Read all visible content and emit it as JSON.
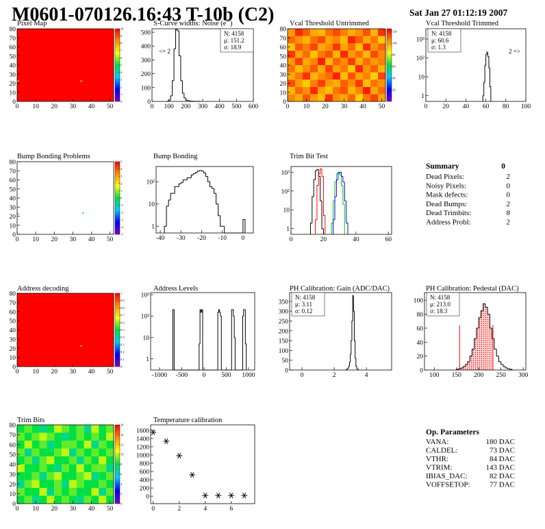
{
  "header": {
    "title": "M0601-070126.16:43 T-10b (C2)",
    "timestamp": "Sat Jan 27 01:12:19 2007"
  },
  "palette": [
    "#8000c0",
    "#0000ff",
    "#00c8ff",
    "#00e040",
    "#ffff00",
    "#ff8c00",
    "#ff0000"
  ],
  "chart_data": [
    {
      "type": "heatmap",
      "title": "Pixel Map",
      "xlim": [
        0,
        52
      ],
      "ylim": [
        0,
        80
      ],
      "xticks": [
        0,
        10,
        20,
        30,
        40,
        50
      ],
      "yticks": [
        0,
        10,
        20,
        30,
        40,
        50,
        60,
        70,
        80
      ],
      "zlim": [
        0,
        10
      ],
      "zticks": [
        0,
        1,
        2,
        3,
        4,
        5,
        6,
        7,
        8,
        9,
        10
      ],
      "xbins": [
        0,
        52
      ],
      "ybins": [
        0,
        80
      ],
      "z": [
        [
          10
        ]
      ],
      "pixels": [
        {
          "x": 34,
          "y": 22,
          "value": 6
        },
        {
          "x": 0,
          "y": 22,
          "value": 6
        }
      ]
    },
    {
      "type": "histogram",
      "title": "S-Curve widths: Noise (e⁻)",
      "color": "#000000",
      "xlim": [
        0,
        600
      ],
      "ylim": [
        0,
        525
      ],
      "xticks": [
        0,
        100,
        200,
        300,
        400,
        500,
        600
      ],
      "yticks": [
        0,
        100,
        200,
        300,
        400,
        500
      ],
      "bins": [
        90,
        100,
        110,
        120,
        130,
        140,
        150,
        160,
        170,
        180,
        190,
        200,
        210,
        220,
        230,
        240,
        250,
        260,
        270,
        280,
        290
      ],
      "values": [
        2,
        8,
        40,
        150,
        380,
        520,
        510,
        330,
        150,
        60,
        25,
        10,
        6,
        3,
        2,
        1,
        1,
        0,
        1,
        0
      ],
      "stats": [
        "N: 4158",
        "μ: 151.2",
        "σ: 18.9"
      ],
      "stats_corner": "upper right",
      "annotation": "<= 2",
      "annotation_side": "left"
    },
    {
      "type": "heatmap",
      "title": "Vcal Threshold Untrimmed",
      "xlim": [
        0,
        52
      ],
      "ylim": [
        0,
        80
      ],
      "xticks": [
        0,
        10,
        20,
        30,
        40,
        50
      ],
      "yticks": [
        0,
        10,
        20,
        30,
        40,
        50,
        60,
        70,
        80
      ],
      "zlim": [
        0,
        125
      ],
      "zticks": [
        20,
        40,
        60,
        80,
        100,
        120
      ],
      "xbins": [
        0,
        4,
        8,
        12,
        16,
        20,
        24,
        28,
        32,
        36,
        40,
        44,
        48,
        52
      ],
      "ybins": [
        0,
        8,
        16,
        24,
        32,
        40,
        48,
        56,
        64,
        72,
        80
      ],
      "z": [
        [
          105,
          98,
          112,
          101,
          95,
          118,
          104,
          99,
          110,
          92,
          107,
          115,
          100
        ],
        [
          96,
          110,
          103,
          119,
          100,
          94,
          108,
          113,
          97,
          105,
          121,
          99,
          109
        ],
        [
          114,
          101,
          93,
          106,
          116,
          102,
          98,
          111,
          104,
          117,
          95,
          108,
          103
        ],
        [
          99,
          107,
          118,
          97,
          104,
          109,
          120,
          95,
          113,
          100,
          106,
          92,
          115
        ],
        [
          108,
          95,
          104,
          112,
          98,
          115,
          101,
          107,
          93,
          119,
          103,
          111,
          97
        ],
        [
          102,
          116,
          99,
          105,
          121,
          96,
          110,
          104,
          116,
          98,
          109,
          101,
          106
        ],
        [
          117,
          100,
          109,
          94,
          107,
          113,
          97,
          119,
          102,
          108,
          96,
          114,
          104
        ],
        [
          94,
          112,
          106,
          115,
          99,
          104,
          117,
          100,
          109,
          95,
          118,
          103,
          110
        ],
        [
          110,
          103,
          97,
          108,
          114,
          100,
          105,
          96,
          120,
          111,
          99,
          107,
          93
        ],
        [
          101,
          119,
          111,
          99,
          96,
          108,
          114,
          106,
          98,
          104,
          113,
          97,
          118
        ]
      ]
    },
    {
      "type": "histogram",
      "title": "Vcal Threshold Trimmed",
      "color": "#000000",
      "logy": true,
      "xlim": [
        0,
        100
      ],
      "ylim": [
        0.5,
        3500
      ],
      "xticks": [
        0,
        20,
        40,
        60,
        80,
        100
      ],
      "yticks": [
        1,
        10,
        {
          "value": 100,
          "label": "10²"
        },
        {
          "value": 1000,
          "label": "10³"
        }
      ],
      "bins": [
        57,
        58,
        59,
        60,
        61,
        62,
        63,
        64,
        65
      ],
      "values": [
        1,
        5,
        40,
        150,
        200,
        120,
        30,
        3
      ],
      "stats": [
        "N: 4158",
        "μ: 60.6",
        "σ:  1.3"
      ],
      "stats_corner": "upper left",
      "annotation": "2 =>",
      "annotation_side": "right"
    },
    {
      "type": "heatmap",
      "title": "Bump Bonding Problems",
      "xlim": [
        0,
        52
      ],
      "ylim": [
        0,
        80
      ],
      "xticks": [
        0,
        10,
        20,
        30,
        40,
        50
      ],
      "yticks": [
        0,
        10,
        20,
        30,
        40,
        50,
        60,
        70,
        80
      ],
      "zlim": [
        -5,
        5
      ],
      "zticks": [
        -5,
        -4,
        -3,
        -2,
        -1,
        0,
        1,
        2,
        3,
        4,
        5
      ],
      "xbins": [
        0,
        52
      ],
      "ybins": [
        0,
        80
      ],
      "z": [
        [
          null
        ]
      ],
      "pixels": [
        {
          "x": 35,
          "y": 23,
          "value": 0
        },
        {
          "x": 0,
          "y": 22,
          "value": 0
        }
      ]
    },
    {
      "type": "histogram",
      "title": "Bump Bonding",
      "color": "#000000",
      "logy": true,
      "xlim": [
        -42,
        5
      ],
      "ylim": [
        0.5,
        480
      ],
      "xticks": [
        -40,
        -30,
        -20,
        -10,
        0
      ],
      "yticks": [
        1,
        10,
        {
          "value": 100,
          "label": "10²"
        }
      ],
      "bins": [
        -38,
        -37,
        -36,
        -35,
        -34,
        -33,
        -32,
        -31,
        -30,
        -29,
        -28,
        -27,
        -26,
        -25,
        -24,
        -23,
        -22,
        -21,
        -20,
        -19,
        -18,
        -17,
        -16,
        -15,
        -14,
        -13,
        -12,
        -11,
        -10,
        -9,
        0,
        1
      ],
      "values": [
        1,
        8,
        15,
        30,
        30,
        60,
        60,
        80,
        90,
        120,
        120,
        150,
        150,
        200,
        230,
        260,
        300,
        320,
        300,
        250,
        170,
        100,
        60,
        50,
        30,
        10,
        3,
        1,
        1,
        0,
        2
      ]
    },
    {
      "type": "histogram",
      "title": "Trim Bit Test",
      "logy": true,
      "xlim": [
        0,
        62
      ],
      "ylim": [
        0.5,
        2000
      ],
      "xticks": [
        0,
        20,
        40,
        60
      ],
      "yticks": [
        1,
        10,
        {
          "value": 100,
          "label": "10²"
        },
        {
          "value": 1000,
          "label": "10³"
        }
      ],
      "series": [
        {
          "color": "#000000",
          "bins": [
            12,
            13,
            14,
            15,
            16,
            17,
            18,
            19,
            20
          ],
          "values": [
            2,
            50,
            400,
            1200,
            1400,
            600,
            30,
            1
          ]
        },
        {
          "color": "#ff0000",
          "bins": [
            15,
            16,
            17,
            18,
            19,
            20,
            21
          ],
          "values": [
            3,
            200,
            800,
            1500,
            600,
            5
          ]
        },
        {
          "color": "#00cc00",
          "bins": [
            25,
            26,
            27,
            28,
            29,
            30,
            31,
            32,
            33
          ],
          "values": [
            2,
            30,
            300,
            800,
            1000,
            700,
            200,
            20
          ]
        },
        {
          "color": "#0000ff",
          "bins": [
            26,
            27,
            28,
            29,
            30,
            31,
            32,
            33,
            34,
            35
          ],
          "values": [
            3,
            50,
            400,
            900,
            1000,
            600,
            300,
            30,
            2
          ]
        }
      ]
    },
    {
      "type": "heatmap",
      "title": "Address decoding",
      "xlim": [
        0,
        52
      ],
      "ylim": [
        0,
        80
      ],
      "xticks": [
        0,
        10,
        20,
        30,
        40,
        50
      ],
      "yticks": [
        0,
        10,
        20,
        30,
        40,
        50,
        60,
        70,
        80
      ],
      "zlim": [
        0,
        1
      ],
      "zticks": [
        0,
        0.1,
        0.2,
        0.3,
        0.4,
        0.5,
        0.6,
        0.7,
        0.8,
        0.9,
        1
      ],
      "xbins": [
        0,
        52
      ],
      "ybins": [
        0,
        80
      ],
      "z": [
        [
          1
        ]
      ],
      "pixels": [
        {
          "x": 34,
          "y": 22,
          "value": 0.6
        }
      ]
    },
    {
      "type": "histogram",
      "title": "Address Levels",
      "color": "#000000",
      "logy": true,
      "xlim": [
        -1200,
        1140
      ],
      "ylim": [
        0.3,
        1250
      ],
      "xticks": [
        -1000,
        -500,
        0,
        500,
        1000
      ],
      "yticks": [
        1,
        10,
        {
          "value": 100,
          "label": "10²"
        },
        {
          "value": 1000,
          "label": "10³"
        }
      ],
      "bins": [
        -700,
        -670,
        -110,
        -90,
        -70,
        -50,
        -30,
        310,
        330,
        350,
        370,
        390,
        620,
        640,
        660,
        680,
        700,
        870,
        890,
        910,
        930,
        950
      ],
      "values": [
        200,
        0,
        5,
        200,
        150,
        200,
        0,
        150,
        200,
        150,
        100,
        0,
        200,
        200,
        100,
        10,
        0,
        100,
        200,
        200,
        5
      ]
    },
    {
      "type": "histogram",
      "title": "PH Calibration: Gain (ADC/DAC)",
      "color": "#000000",
      "xlim": [
        -0.77,
        5.57
      ],
      "ylim": [
        0,
        395
      ],
      "xticks": [
        0,
        2,
        4
      ],
      "yticks": [
        0,
        50,
        100,
        150,
        200,
        250,
        300,
        350
      ],
      "bins": [
        2.75,
        2.8,
        2.85,
        2.9,
        2.95,
        3,
        3.05,
        3.1,
        3.15,
        3.2,
        3.25,
        3.3,
        3.35,
        3.4,
        3.45,
        3.5
      ],
      "values": [
        2,
        5,
        10,
        20,
        40,
        80,
        150,
        250,
        380,
        300,
        150,
        60,
        20,
        8,
        2
      ],
      "stats": [
        "N: 4158",
        "μ: 3.11",
        "σ: 0.12"
      ],
      "stats_corner": "upper left"
    },
    {
      "type": "histogram",
      "title": "PH Calibration: Pedestal (DAC)",
      "color": "#000000",
      "xlim": [
        78,
        306
      ],
      "ylim": [
        0,
        111
      ],
      "xticks": [
        100,
        150,
        200,
        250,
        300
      ],
      "yticks": [
        0,
        20,
        40,
        60,
        80,
        100
      ],
      "bins": [
        150,
        155,
        160,
        165,
        170,
        175,
        180,
        185,
        190,
        195,
        200,
        205,
        210,
        215,
        220,
        225,
        230,
        235,
        240,
        245,
        250,
        255,
        260,
        265,
        270,
        275
      ],
      "values": [
        1,
        2,
        3,
        5,
        8,
        12,
        20,
        30,
        45,
        60,
        75,
        85,
        95,
        90,
        80,
        60,
        45,
        30,
        20,
        12,
        8,
        5,
        3,
        2,
        1
      ],
      "fit_range": [
        157,
        232
      ],
      "fit_color": "#ff0000",
      "stats": [
        "N: 4158",
        "μ: 213.0",
        "σ: 18.3"
      ],
      "stats_colors": [
        "#000000",
        "#ff0000",
        "#ff0000"
      ],
      "stats_corner": "upper left"
    },
    {
      "type": "heatmap",
      "title": "Trim Bits",
      "xlim": [
        0,
        52
      ],
      "ylim": [
        0,
        80
      ],
      "xticks": [
        0,
        10,
        20,
        30,
        40,
        50
      ],
      "yticks": [
        0,
        10,
        20,
        30,
        40,
        50,
        60,
        70,
        80
      ],
      "zlim": [
        0,
        16
      ],
      "zticks": [
        0,
        2,
        4,
        6,
        8,
        10,
        12,
        14,
        16
      ],
      "xbins": [
        0,
        4,
        8,
        12,
        16,
        20,
        24,
        28,
        32,
        36,
        40,
        44,
        48,
        52
      ],
      "ybins": [
        0,
        8,
        16,
        24,
        32,
        40,
        48,
        56,
        64,
        72,
        80
      ],
      "z": [
        [
          8,
          9,
          7,
          8,
          10,
          8,
          9,
          8,
          7,
          9,
          8,
          10,
          8
        ],
        [
          9,
          8,
          8,
          10,
          7,
          9,
          8,
          9,
          8,
          8,
          10,
          7,
          9
        ],
        [
          7,
          9,
          10,
          8,
          8,
          9,
          7,
          10,
          9,
          8,
          8,
          9,
          8
        ],
        [
          8,
          8,
          9,
          7,
          9,
          10,
          8,
          8,
          9,
          10,
          7,
          8,
          9
        ],
        [
          10,
          8,
          8,
          9,
          8,
          7,
          9,
          8,
          10,
          8,
          9,
          9,
          7
        ],
        [
          8,
          9,
          7,
          9,
          10,
          8,
          8,
          9,
          7,
          9,
          8,
          10,
          8
        ],
        [
          9,
          7,
          9,
          8,
          8,
          9,
          10,
          7,
          9,
          8,
          9,
          8,
          9
        ],
        [
          8,
          10,
          8,
          9,
          7,
          8,
          9,
          9,
          8,
          10,
          7,
          9,
          8
        ],
        [
          9,
          8,
          9,
          10,
          9,
          8,
          7,
          8,
          9,
          8,
          9,
          8,
          10
        ],
        [
          8,
          9,
          8,
          7,
          8,
          10,
          9,
          8,
          9,
          7,
          10,
          8,
          9
        ]
      ]
    },
    {
      "type": "scatter",
      "title": "Temperature calibration",
      "color": "#000000",
      "xlim": [
        -0.2,
        7.8
      ],
      "ylim": [
        -180,
        1730
      ],
      "xticks": [
        0,
        2,
        4,
        6
      ],
      "yticks": [
        0,
        200,
        400,
        600,
        800,
        1000,
        1200,
        1400,
        1600
      ],
      "x": [
        0,
        1,
        2,
        3,
        4,
        5,
        6,
        7
      ],
      "values": [
        1550,
        1333,
        983,
        517,
        17,
        17,
        17,
        17
      ]
    }
  ],
  "summary": {
    "title": "Summary",
    "status": 0,
    "rows": [
      {
        "label": "Dead Pixels:",
        "value": 2
      },
      {
        "label": "Noisy Pixels:",
        "value": 0
      },
      {
        "label": "Mask defects:",
        "value": 0
      },
      {
        "label": "Dead Bumps:",
        "value": 2
      },
      {
        "label": "Dead Trimbits:",
        "value": 8
      },
      {
        "label": "Address Probl:",
        "value": 2
      }
    ]
  },
  "op_parameters": {
    "title": "Op. Parameters",
    "rows": [
      {
        "label": "VANA:",
        "value": "180 DAC"
      },
      {
        "label": "CALDEL:",
        "value": "73 DAC"
      },
      {
        "label": "VTHR:",
        "value": "84 DAC"
      },
      {
        "label": "VTRIM:",
        "value": "143 DAC"
      },
      {
        "label": "IBIAS_DAC:",
        "value": "82 DAC"
      },
      {
        "label": "VOFFSETOP:",
        "value": "77 DAC"
      }
    ]
  }
}
